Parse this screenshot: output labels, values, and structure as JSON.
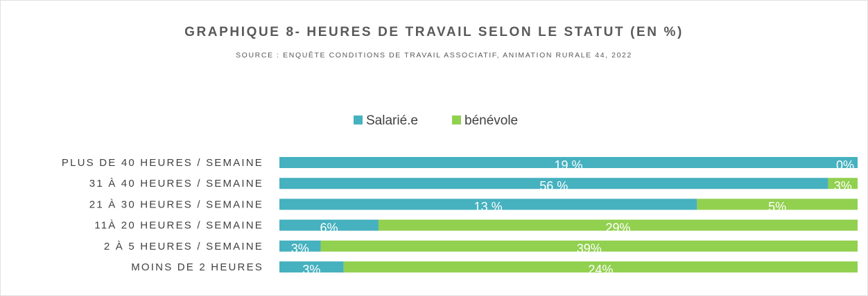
{
  "chart_data": {
    "type": "bar",
    "orientation": "horizontal",
    "stacking": "percent",
    "title": "GRAPHIQUE 8- HEURES DE TRAVAIL SELON LE STATUT (EN %)",
    "subtitle": "SOURCE : ENQUÊTE CONDITIONS DE TRAVAIL ASSOCIATIF, ANIMATION RURALE 44, 2022",
    "categories": [
      "PLUS DE 40 HEURES / SEMAINE",
      "31 À 40 HEURES / SEMAINE",
      "21 À 30 HEURES / SEMAINE",
      "11À 20 HEURES / SEMAINE",
      "2 À 5 HEURES / SEMAINE",
      "MOINS DE 2 HEURES"
    ],
    "series": [
      {
        "name": "Salarié.e",
        "color": "#46b1bf",
        "values": [
          19,
          56,
          13,
          6,
          3,
          3
        ],
        "value_labels": [
          "19 %",
          "56 %",
          "13 %",
          "6%",
          "3%",
          "3%"
        ]
      },
      {
        "name": "bénévole",
        "color": "#92d050",
        "values": [
          0,
          3,
          5,
          29,
          39,
          24
        ],
        "value_labels": [
          "0%",
          "3%",
          "5%",
          "29%",
          "39%",
          "24%"
        ]
      }
    ],
    "legend": "top"
  }
}
